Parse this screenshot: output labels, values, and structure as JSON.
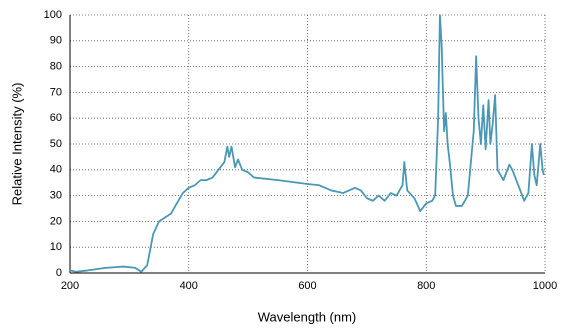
{
  "chart_data": {
    "type": "line",
    "x_label": "Wavelength (nm)",
    "y_label": "Relative Intensity (%)",
    "xlim": [
      200,
      1000
    ],
    "ylim": [
      0,
      100
    ],
    "xticks": [
      200,
      400,
      600,
      800,
      1000
    ],
    "yticks": [
      0,
      10,
      20,
      30,
      40,
      50,
      60,
      70,
      80,
      90,
      100
    ],
    "grid": true,
    "x": [
      200,
      210,
      230,
      260,
      290,
      310,
      320,
      330,
      340,
      350,
      370,
      380,
      390,
      400,
      410,
      420,
      430,
      440,
      450,
      460,
      465,
      468,
      472,
      478,
      483,
      490,
      500,
      510,
      550,
      600,
      620,
      640,
      660,
      680,
      690,
      700,
      710,
      720,
      730,
      740,
      750,
      760,
      763,
      768,
      780,
      790,
      800,
      810,
      815,
      820,
      823,
      826,
      830,
      833,
      836,
      840,
      845,
      850,
      860,
      870,
      880,
      884,
      888,
      892,
      896,
      900,
      905,
      908,
      912,
      916,
      920,
      930,
      940,
      945,
      955,
      965,
      972,
      978,
      982,
      986,
      992,
      996,
      998
    ],
    "series": [
      {
        "color": "#4a98b6",
        "values": [
          1,
          0.5,
          1,
          2,
          2.5,
          2,
          0.5,
          3,
          15,
          20,
          23,
          27,
          31,
          33,
          34,
          36,
          36,
          37,
          40,
          43,
          49,
          45,
          49,
          41,
          44,
          40,
          39,
          37,
          36,
          34.5,
          34,
          32,
          31,
          33,
          32,
          29,
          28,
          30,
          28,
          31,
          30,
          34,
          43,
          32,
          29,
          24,
          27,
          28,
          30,
          60,
          100,
          88,
          55,
          62,
          50,
          42,
          30,
          26,
          26,
          30,
          55,
          84,
          60,
          50,
          65,
          48,
          67,
          50,
          58,
          69,
          40,
          36,
          42,
          40,
          34,
          28,
          31,
          50,
          38,
          34,
          50,
          40,
          38
        ]
      }
    ]
  }
}
